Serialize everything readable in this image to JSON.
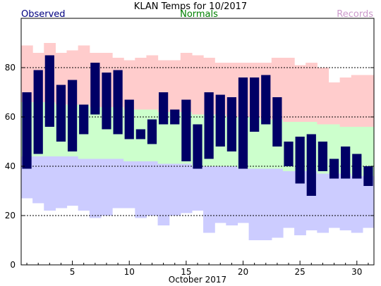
{
  "chart_data": {
    "type": "bar",
    "title": "KLAN Temps for 10/2017",
    "xlabel": "October 2017",
    "ylabel": "",
    "legend": {
      "observed": "Observed",
      "normals": "Normals",
      "records": "Records"
    },
    "colors": {
      "observed": "#000066",
      "normals": "#ccffcc",
      "record_high": "#ffcccc",
      "record_low": "#ccccff",
      "legend_observed": "#000080",
      "legend_normals": "#008000",
      "legend_records": "#cc99cc",
      "gridline": "#000000"
    },
    "xlim": [
      0.5,
      31.5
    ],
    "ylim": [
      0,
      100
    ],
    "x_ticks": [
      5,
      10,
      15,
      20,
      25,
      30
    ],
    "y_ticks": [
      0,
      20,
      40,
      60,
      80
    ],
    "grid_lines": [
      20,
      40,
      60,
      80
    ],
    "days": [
      1,
      2,
      3,
      4,
      5,
      6,
      7,
      8,
      9,
      10,
      11,
      12,
      13,
      14,
      15,
      16,
      17,
      18,
      19,
      20,
      21,
      22,
      23,
      24,
      25,
      26,
      27,
      28,
      29,
      30,
      31
    ],
    "observed_high": [
      70,
      79,
      85,
      73,
      75,
      65,
      82,
      78,
      79,
      67,
      55,
      59,
      70,
      63,
      67,
      57,
      70,
      69,
      68,
      76,
      76,
      77,
      68,
      50,
      52,
      53,
      50,
      43,
      48,
      45,
      40
    ],
    "observed_low": [
      39,
      45,
      56,
      50,
      46,
      53,
      61,
      55,
      53,
      51,
      51,
      49,
      57,
      57,
      42,
      39,
      43,
      48,
      46,
      39,
      54,
      57,
      48,
      40,
      33,
      28,
      38,
      35,
      35,
      35,
      32
    ],
    "normal_high": [
      66,
      66,
      66,
      65,
      65,
      65,
      64,
      64,
      64,
      63,
      63,
      63,
      62,
      62,
      62,
      61,
      61,
      61,
      60,
      60,
      60,
      59,
      59,
      58,
      58,
      58,
      57,
      57,
      56,
      56,
      56
    ],
    "normal_low": [
      44,
      44,
      44,
      44,
      44,
      43,
      43,
      43,
      43,
      42,
      42,
      42,
      41,
      41,
      41,
      40,
      40,
      40,
      40,
      39,
      39,
      39,
      39,
      38,
      38,
      38,
      37,
      37,
      37,
      36,
      36
    ],
    "record_high": [
      89,
      86,
      90,
      86,
      87,
      89,
      86,
      86,
      84,
      83,
      84,
      85,
      83,
      83,
      86,
      85,
      84,
      82,
      82,
      82,
      82,
      82,
      84,
      84,
      81,
      82,
      80,
      74,
      76,
      77,
      77
    ],
    "record_low": [
      27,
      25,
      22,
      23,
      24,
      22,
      19,
      20,
      23,
      23,
      19,
      20,
      16,
      20,
      21,
      22,
      13,
      17,
      16,
      17,
      10,
      10,
      11,
      15,
      12,
      14,
      13,
      15,
      14,
      13,
      15
    ]
  }
}
